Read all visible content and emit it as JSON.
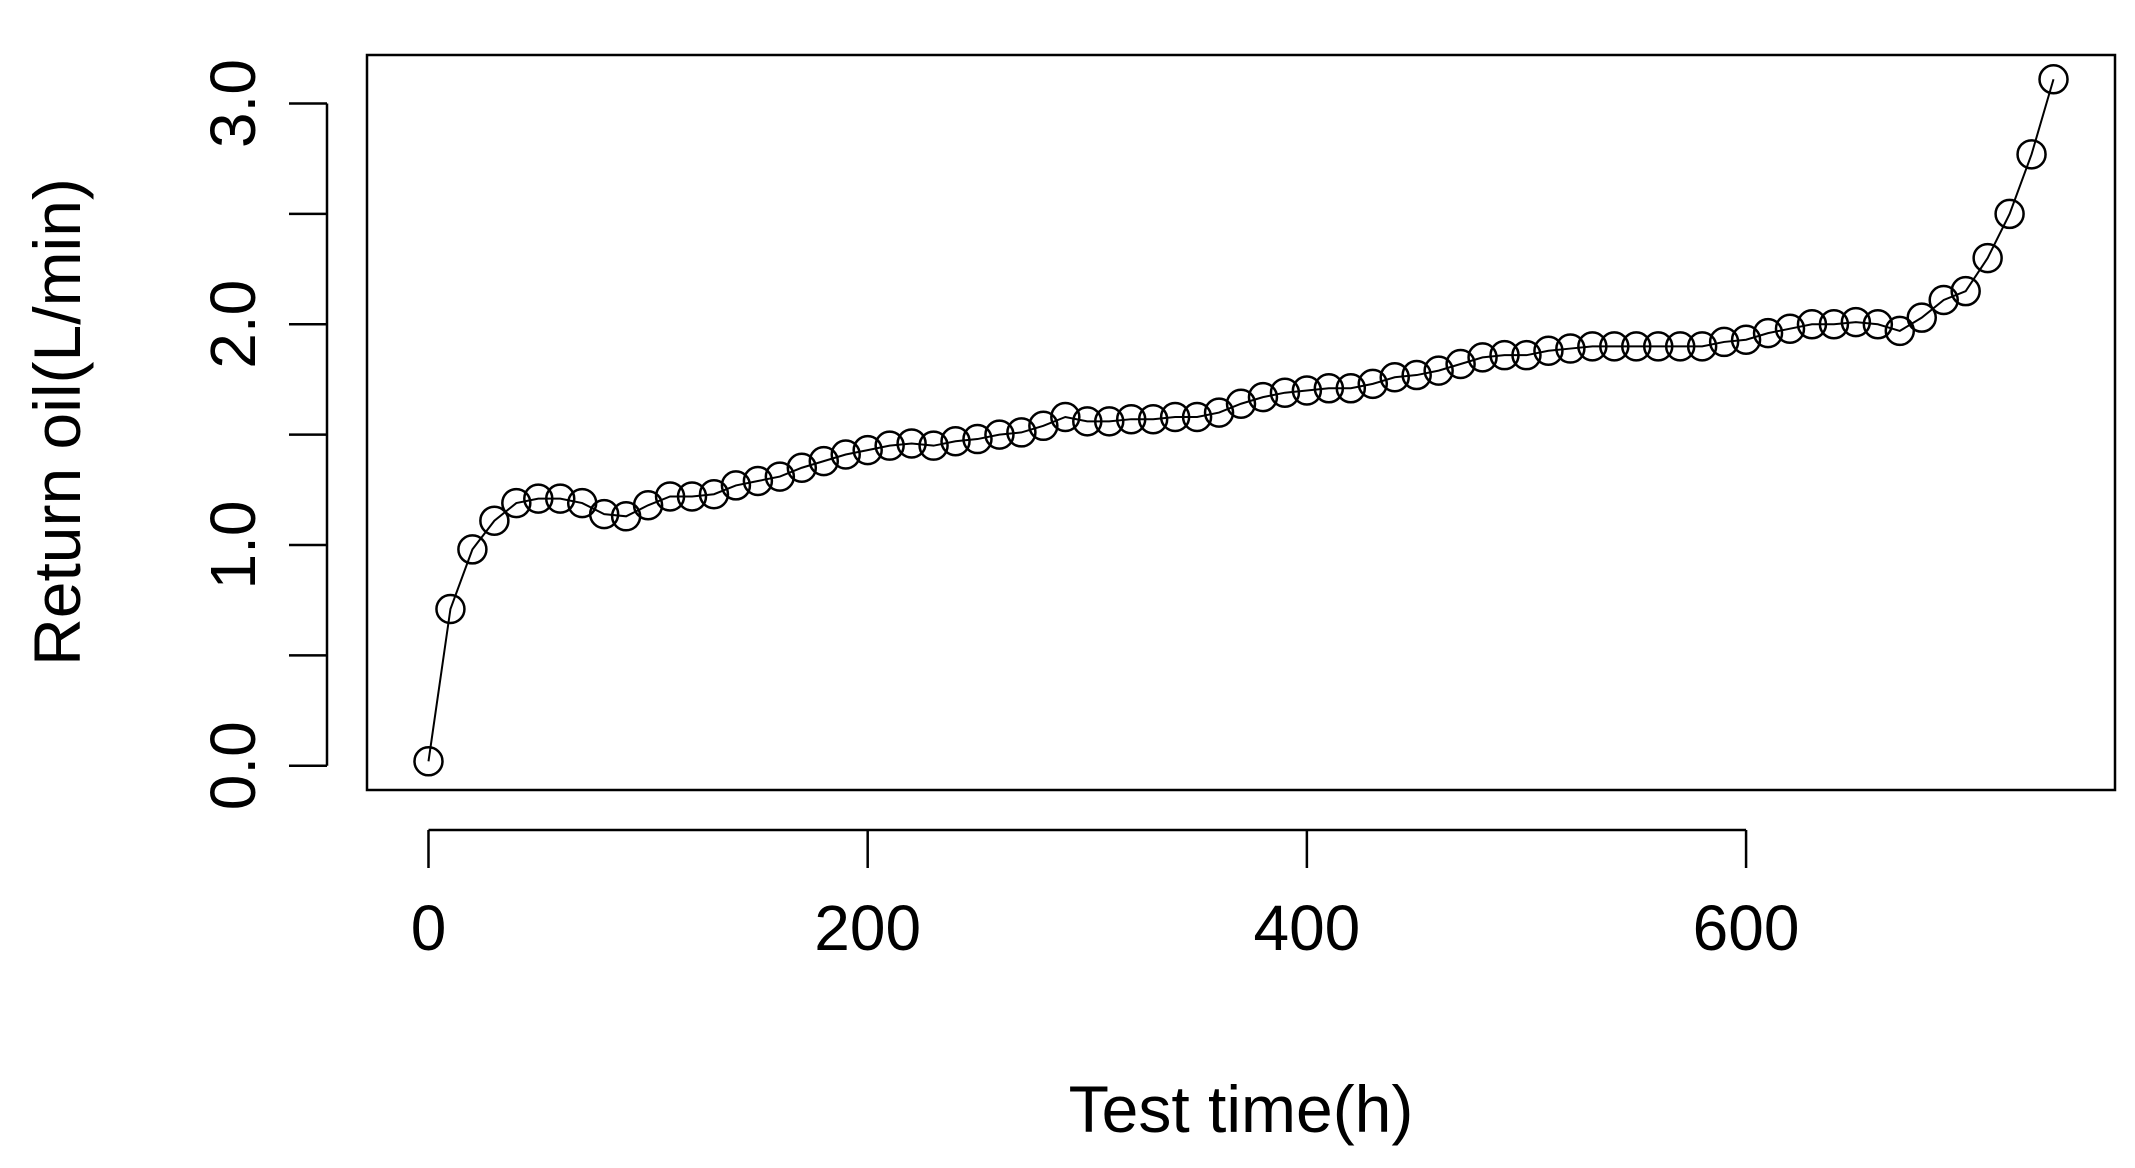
{
  "chart_data": {
    "type": "line",
    "title": "",
    "xlabel": "Test time(h)",
    "ylabel": "Return oil(L/min)",
    "xlim": [
      -28,
      768
    ],
    "ylim": [
      -0.11,
      3.22
    ],
    "x_ticks": [
      0,
      200,
      400,
      600
    ],
    "x_tick_labels": [
      "0",
      "200",
      "400",
      "600"
    ],
    "y_ticks": [
      0.0,
      0.5,
      1.0,
      1.5,
      2.0,
      2.5,
      3.0
    ],
    "y_tick_labels": [
      "0.0",
      "",
      "1.0",
      "",
      "2.0",
      "",
      "3.0"
    ],
    "grid": false,
    "marker": "open-circle",
    "line_color": "#000000",
    "series": [
      {
        "x": [
          0,
          10,
          20,
          30,
          40,
          50,
          60,
          70,
          80,
          90,
          100,
          110,
          120,
          130,
          140,
          150,
          160,
          170,
          180,
          190,
          200,
          210,
          220,
          230,
          240,
          250,
          260,
          270,
          280,
          290,
          300,
          310,
          320,
          330,
          340,
          350,
          360,
          370,
          380,
          390,
          400,
          410,
          420,
          430,
          440,
          450,
          460,
          470,
          480,
          490,
          500,
          510,
          520,
          530,
          540,
          550,
          560,
          570,
          580,
          590,
          600,
          610,
          620,
          630,
          640,
          650,
          660,
          670,
          680,
          690,
          700,
          710,
          720,
          730,
          740
        ],
        "y": [
          0.02,
          0.71,
          0.98,
          1.11,
          1.19,
          1.21,
          1.21,
          1.19,
          1.14,
          1.13,
          1.18,
          1.22,
          1.22,
          1.23,
          1.27,
          1.29,
          1.31,
          1.35,
          1.38,
          1.41,
          1.43,
          1.45,
          1.46,
          1.45,
          1.47,
          1.48,
          1.5,
          1.51,
          1.54,
          1.58,
          1.56,
          1.56,
          1.57,
          1.57,
          1.58,
          1.58,
          1.6,
          1.64,
          1.67,
          1.69,
          1.7,
          1.71,
          1.71,
          1.73,
          1.76,
          1.77,
          1.79,
          1.82,
          1.85,
          1.86,
          1.86,
          1.88,
          1.89,
          1.9,
          1.9,
          1.9,
          1.9,
          1.9,
          1.9,
          1.92,
          1.93,
          1.96,
          1.98,
          2.0,
          2.0,
          2.01,
          2.0,
          1.97,
          2.03,
          2.11,
          2.15,
          2.3,
          2.5,
          2.77,
          3.11
        ]
      }
    ]
  }
}
